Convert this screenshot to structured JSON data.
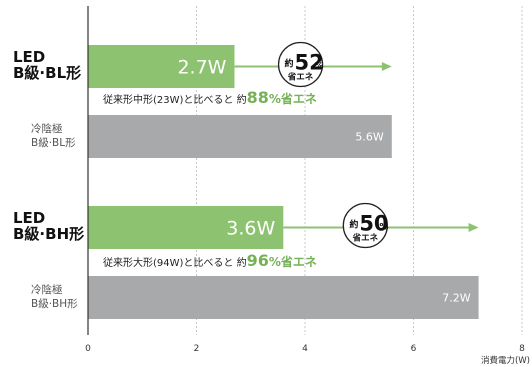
{
  "chart_data": {
    "type": "bar",
    "orientation": "horizontal",
    "xlim": [
      0,
      8
    ],
    "x_ticks": [
      "0",
      "2",
      "4",
      "6",
      "8"
    ],
    "x_unit": "消費電力(W)",
    "grid": "vertical-dashed",
    "colors": {
      "led": "#8dc270",
      "ccfl": "#a8a9ab",
      "accent": "#76b158"
    },
    "groups": [
      {
        "led": {
          "label_line1": "LED",
          "label_line2": "B級·BL形",
          "value": 2.7,
          "value_label": "2.7W"
        },
        "compare": {
          "label_line1": "冷陰極",
          "label_line2": "B級·BL形",
          "value": 5.6,
          "value_label": "5.6W"
        },
        "saving_text_pre": "従来形中形(23W)と比べると 約",
        "saving_text_num": "88",
        "saving_text_post": "%省エネ",
        "bubble": {
          "prefix": "約",
          "number": "52",
          "percent": "%",
          "sub": "省エネ"
        }
      },
      {
        "led": {
          "label_line1": "LED",
          "label_line2": "B級·BH形",
          "value": 3.6,
          "value_label": "3.6W"
        },
        "compare": {
          "label_line1": "冷陰極",
          "label_line2": "B級·BH形",
          "value": 7.2,
          "value_label": "7.2W"
        },
        "saving_text_pre": "従来形大形(94W)と比べると 約",
        "saving_text_num": "96",
        "saving_text_post": "%省エネ",
        "bubble": {
          "prefix": "約",
          "number": "50",
          "percent": "%",
          "sub": "省エネ"
        }
      }
    ]
  }
}
